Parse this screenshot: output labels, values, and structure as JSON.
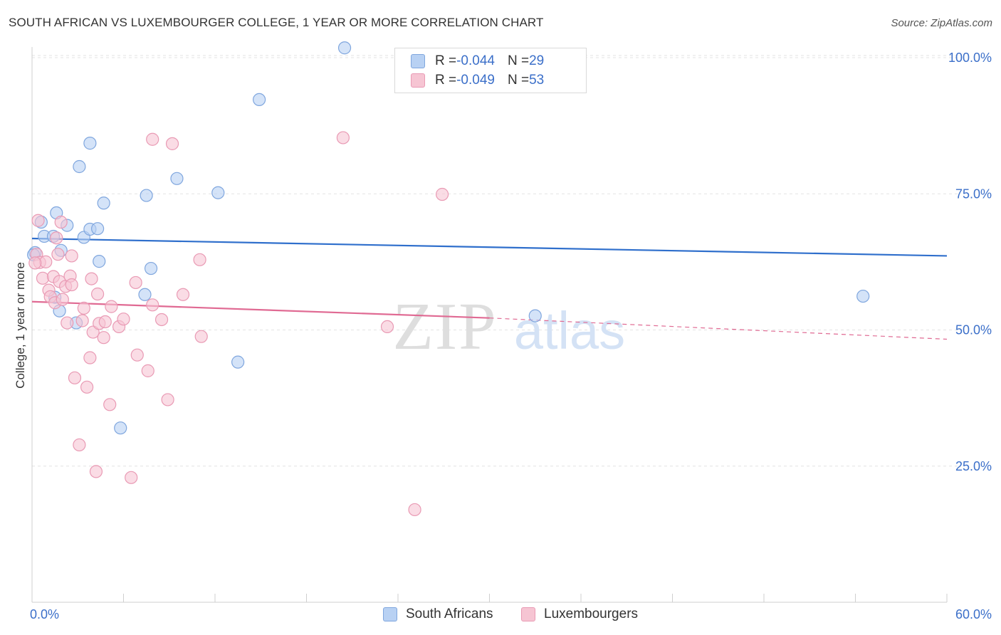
{
  "header": {
    "title": "SOUTH AFRICAN VS LUXEMBOURGER COLLEGE, 1 YEAR OR MORE CORRELATION CHART",
    "source": "Source: ZipAtlas.com"
  },
  "watermark": {
    "zip": "ZIP",
    "atlas": "atlas"
  },
  "colors": {
    "blue_fill": "#b8d1f3",
    "blue_stroke": "#7fa6de",
    "blue_line": "#2f6fcc",
    "pink_fill": "#f6c5d3",
    "pink_stroke": "#e99ab4",
    "pink_line": "#e06a93",
    "grid": "#e3e3e3",
    "tick_label": "#3b6fc9"
  },
  "legend": {
    "rows": [
      {
        "r_label": "R = ",
        "r_value": "-0.044",
        "n_label": "N = ",
        "n_value": "29"
      },
      {
        "r_label": "R = ",
        "r_value": "-0.049",
        "n_label": "N = ",
        "n_value": "53"
      }
    ]
  },
  "bottom_legend": [
    "South Africans",
    "Luxembourgers"
  ],
  "chart_data": {
    "type": "scatter",
    "title": "SOUTH AFRICAN VS LUXEMBOURGER COLLEGE, 1 YEAR OR MORE CORRELATION CHART",
    "xlabel": "",
    "ylabel": "College, 1 year or more",
    "xlim": [
      0,
      60
    ],
    "ylim": [
      0,
      105
    ],
    "x_tick_labels": [
      "0.0%",
      "60.0%"
    ],
    "y_ticks": [
      25,
      50,
      75,
      100
    ],
    "y_tick_labels": [
      "25.0%",
      "50.0%",
      "75.0%",
      "100.0%"
    ],
    "grid": true,
    "legend_position": "top-center",
    "series": [
      {
        "name": "South Africans",
        "r": -0.044,
        "n": 29,
        "trend": {
          "x": [
            0,
            60
          ],
          "y": [
            66.8,
            63.6
          ]
        },
        "points": [
          [
            0.2,
            64.2
          ],
          [
            0.6,
            69.8
          ],
          [
            0.8,
            67.2
          ],
          [
            1.6,
            71.5
          ],
          [
            1.4,
            67.2
          ],
          [
            1.9,
            64.6
          ],
          [
            1.5,
            56.0
          ],
          [
            1.8,
            53.5
          ],
          [
            2.9,
            51.3
          ],
          [
            3.1,
            80.0
          ],
          [
            3.8,
            84.3
          ],
          [
            3.4,
            67.0
          ],
          [
            3.8,
            68.5
          ],
          [
            4.3,
            68.6
          ],
          [
            4.4,
            62.6
          ],
          [
            4.7,
            73.3
          ],
          [
            5.8,
            32.0
          ],
          [
            7.5,
            74.7
          ],
          [
            7.4,
            56.5
          ],
          [
            7.8,
            61.3
          ],
          [
            9.5,
            77.8
          ],
          [
            12.2,
            75.2
          ],
          [
            13.5,
            44.1
          ],
          [
            14.9,
            92.3
          ],
          [
            20.5,
            101.8
          ],
          [
            33.0,
            52.6
          ],
          [
            54.5,
            56.2
          ],
          [
            0.1,
            63.8
          ],
          [
            2.3,
            69.2
          ]
        ]
      },
      {
        "name": "Luxembourgers",
        "r": -0.049,
        "n": 53,
        "trend": {
          "x": [
            0,
            30,
            60
          ],
          "y": [
            55.2,
            52.2,
            48.3
          ]
        },
        "trend_solid_to_x": 30,
        "points": [
          [
            0.3,
            63.9
          ],
          [
            0.4,
            70.1
          ],
          [
            0.5,
            62.4
          ],
          [
            0.7,
            59.5
          ],
          [
            0.9,
            62.5
          ],
          [
            1.1,
            57.3
          ],
          [
            1.2,
            56.1
          ],
          [
            1.4,
            59.8
          ],
          [
            1.5,
            55.0
          ],
          [
            1.6,
            66.9
          ],
          [
            1.7,
            63.9
          ],
          [
            1.8,
            58.9
          ],
          [
            1.9,
            69.8
          ],
          [
            2.0,
            55.6
          ],
          [
            2.2,
            58.0
          ],
          [
            2.3,
            51.3
          ],
          [
            2.5,
            59.9
          ],
          [
            2.6,
            63.6
          ],
          [
            2.6,
            58.3
          ],
          [
            2.8,
            41.2
          ],
          [
            3.1,
            28.9
          ],
          [
            3.3,
            51.7
          ],
          [
            3.4,
            54.0
          ],
          [
            3.6,
            39.5
          ],
          [
            3.8,
            44.9
          ],
          [
            3.9,
            59.4
          ],
          [
            4.0,
            49.6
          ],
          [
            4.2,
            24.0
          ],
          [
            4.3,
            56.6
          ],
          [
            4.4,
            51.2
          ],
          [
            4.7,
            48.6
          ],
          [
            4.8,
            51.5
          ],
          [
            5.1,
            36.3
          ],
          [
            5.2,
            54.3
          ],
          [
            5.7,
            50.6
          ],
          [
            6.0,
            52.0
          ],
          [
            6.5,
            22.9
          ],
          [
            6.8,
            58.7
          ],
          [
            6.9,
            45.4
          ],
          [
            7.6,
            42.5
          ],
          [
            7.9,
            54.6
          ],
          [
            7.9,
            85.0
          ],
          [
            8.5,
            51.9
          ],
          [
            8.9,
            37.2
          ],
          [
            9.2,
            84.2
          ],
          [
            9.9,
            56.5
          ],
          [
            11.0,
            62.9
          ],
          [
            11.1,
            48.8
          ],
          [
            20.4,
            85.3
          ],
          [
            23.3,
            50.6
          ],
          [
            25.1,
            17.0
          ],
          [
            26.9,
            74.9
          ],
          [
            0.2,
            62.3
          ]
        ]
      }
    ]
  }
}
